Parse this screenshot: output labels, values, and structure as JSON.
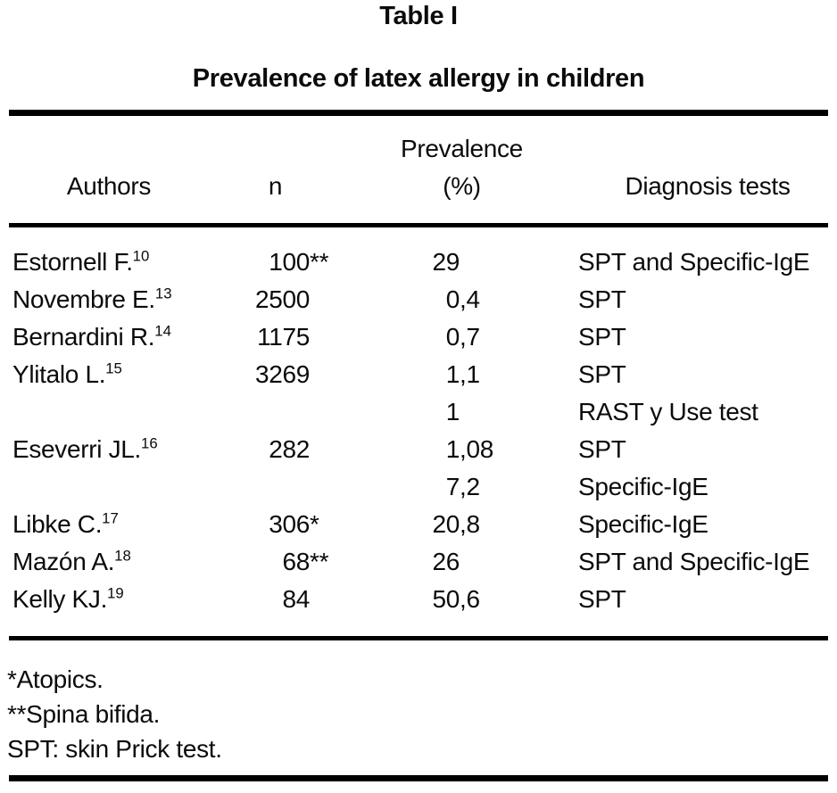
{
  "title": "Table I",
  "subtitle": "Prevalence of latex allergy in children",
  "header": {
    "authors": "Authors",
    "n": "n",
    "prevalence_line1": "Prevalence",
    "prevalence_line2": "(%)",
    "diagnosis": "Diagnosis tests"
  },
  "table": {
    "columns": [
      "Authors",
      "n",
      "Prevalence (%)",
      "Diagnosis tests"
    ],
    "rows": [
      {
        "author": "Estornell F.",
        "ref": "10",
        "n": "100",
        "n_mark": "**",
        "prevalence": "29",
        "diagnosis": "SPT and Specific-IgE"
      },
      {
        "author": "Novembre E.",
        "ref": "13",
        "n": "2500",
        "n_mark": "",
        "prevalence": "0,4",
        "diagnosis": "SPT"
      },
      {
        "author": "Bernardini R.",
        "ref": "14",
        "n": "1175",
        "n_mark": "",
        "prevalence": "0,7",
        "diagnosis": "SPT"
      },
      {
        "author": "Ylitalo L.",
        "ref": "15",
        "n": "3269",
        "n_mark": "",
        "prevalence": "1,1",
        "diagnosis": "SPT"
      },
      {
        "author": "",
        "ref": "",
        "n": "",
        "n_mark": "",
        "prevalence": "1",
        "diagnosis": "RAST y Use test"
      },
      {
        "author": "Eseverri JL.",
        "ref": "16",
        "n": "282",
        "n_mark": "",
        "prevalence": "1,08",
        "diagnosis": "SPT"
      },
      {
        "author": "",
        "ref": "",
        "n": "",
        "n_mark": "",
        "prevalence": "7,2",
        "diagnosis": "Specific-IgE"
      },
      {
        "author": "Libke C.",
        "ref": "17",
        "n": "306",
        "n_mark": "*",
        "prevalence": "20,8",
        "diagnosis": "Specific-IgE"
      },
      {
        "author": "Mazón A.",
        "ref": "18",
        "n": "68",
        "n_mark": "**",
        "prevalence": "26",
        "diagnosis": "SPT and Specific-IgE"
      },
      {
        "author": "Kelly KJ.",
        "ref": "19",
        "n": "84",
        "n_mark": "",
        "prevalence": "50,6",
        "diagnosis": "SPT"
      }
    ]
  },
  "footnotes": [
    "*Atopics.",
    "**Spina bifida.",
    "SPT: skin Prick test."
  ]
}
